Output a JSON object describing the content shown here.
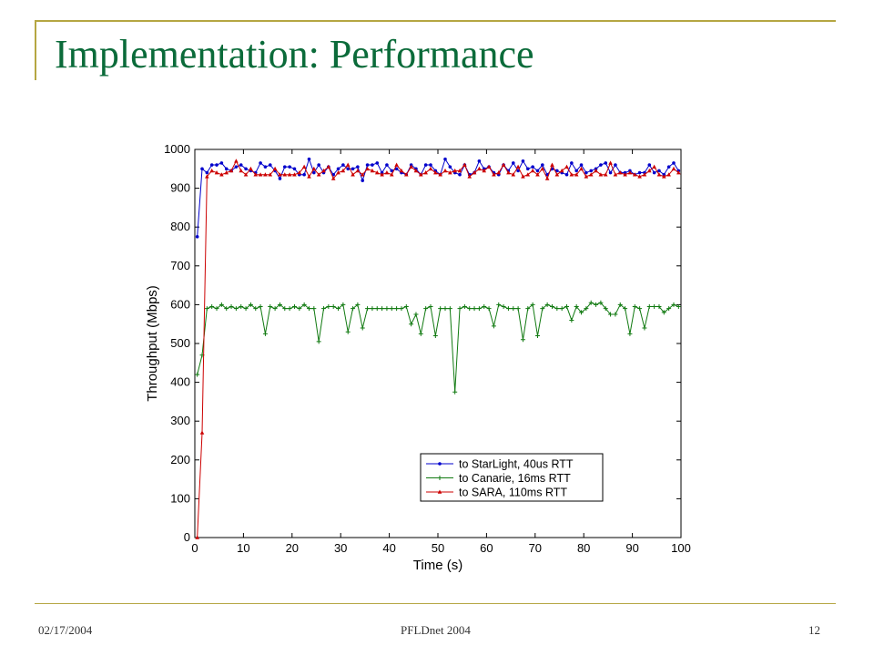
{
  "slide": {
    "title": "Implementation: Performance",
    "footer_date": "02/17/2004",
    "footer_center": "PFLDnet 2004",
    "footer_page": "12"
  },
  "colors": {
    "title": "#0b6b3a",
    "accent_line": "#b5a642",
    "starlight": "#0000cc",
    "canarie": "#117a11",
    "sara": "#cc0000"
  },
  "chart_data": {
    "type": "line",
    "xlabel": "Time (s)",
    "ylabel": "Throughput (Mbps)",
    "xlim": [
      0,
      100
    ],
    "ylim": [
      0,
      1000
    ],
    "xticks": [
      0,
      10,
      20,
      30,
      40,
      50,
      60,
      70,
      80,
      90,
      100
    ],
    "yticks": [
      0,
      100,
      200,
      300,
      400,
      500,
      600,
      700,
      800,
      900,
      1000
    ],
    "grid": false,
    "legend_position": "bottom-right",
    "series": [
      {
        "name": "to StarLight, 40us RTT",
        "color": "#0000cc",
        "marker": "dot",
        "x": [
          0.5,
          1.5,
          2.5,
          3.5,
          4.5,
          5.5,
          6.5,
          7.5,
          8.5,
          9.5,
          10.5,
          11.5,
          12.5,
          13.5,
          14.5,
          15.5,
          16.5,
          17.5,
          18.5,
          19.5,
          20.5,
          21.5,
          22.5,
          23.5,
          24.5,
          25.5,
          26.5,
          27.5,
          28.5,
          29.5,
          30.5,
          31.5,
          32.5,
          33.5,
          34.5,
          35.5,
          36.5,
          37.5,
          38.5,
          39.5,
          40.5,
          41.5,
          42.5,
          43.5,
          44.5,
          45.5,
          46.5,
          47.5,
          48.5,
          49.5,
          50.5,
          51.5,
          52.5,
          53.5,
          54.5,
          55.5,
          56.5,
          57.5,
          58.5,
          59.5,
          60.5,
          61.5,
          62.5,
          63.5,
          64.5,
          65.5,
          66.5,
          67.5,
          68.5,
          69.5,
          70.5,
          71.5,
          72.5,
          73.5,
          74.5,
          75.5,
          76.5,
          77.5,
          78.5,
          79.5,
          80.5,
          81.5,
          82.5,
          83.5,
          84.5,
          85.5,
          86.5,
          87.5,
          88.5,
          89.5,
          90.5,
          91.5,
          92.5,
          93.5,
          94.5,
          95.5,
          96.5,
          97.5,
          98.5,
          99.5
        ],
        "y": [
          775,
          950,
          940,
          960,
          960,
          965,
          950,
          945,
          955,
          960,
          950,
          945,
          940,
          965,
          955,
          960,
          945,
          925,
          955,
          955,
          950,
          935,
          935,
          975,
          940,
          960,
          940,
          955,
          935,
          950,
          960,
          950,
          950,
          955,
          920,
          960,
          960,
          965,
          940,
          960,
          945,
          950,
          940,
          935,
          960,
          950,
          935,
          960,
          960,
          945,
          935,
          975,
          955,
          940,
          935,
          960,
          935,
          940,
          970,
          950,
          955,
          940,
          935,
          960,
          945,
          965,
          945,
          970,
          950,
          955,
          945,
          960,
          935,
          950,
          945,
          940,
          935,
          965,
          945,
          960,
          940,
          945,
          950,
          960,
          965,
          940,
          960,
          940,
          940,
          945,
          935,
          940,
          940,
          960,
          940,
          945,
          935,
          955,
          965,
          945
        ]
      },
      {
        "name": "to Canarie, 16ms RTT",
        "color": "#117a11",
        "marker": "plus",
        "x": [
          0.5,
          1.5,
          2.5,
          3.5,
          4.5,
          5.5,
          6.5,
          7.5,
          8.5,
          9.5,
          10.5,
          11.5,
          12.5,
          13.5,
          14.5,
          15.5,
          16.5,
          17.5,
          18.5,
          19.5,
          20.5,
          21.5,
          22.5,
          23.5,
          24.5,
          25.5,
          26.5,
          27.5,
          28.5,
          29.5,
          30.5,
          31.5,
          32.5,
          33.5,
          34.5,
          35.5,
          36.5,
          37.5,
          38.5,
          39.5,
          40.5,
          41.5,
          42.5,
          43.5,
          44.5,
          45.5,
          46.5,
          47.5,
          48.5,
          49.5,
          50.5,
          51.5,
          52.5,
          53.5,
          54.5,
          55.5,
          56.5,
          57.5,
          58.5,
          59.5,
          60.5,
          61.5,
          62.5,
          63.5,
          64.5,
          65.5,
          66.5,
          67.5,
          68.5,
          69.5,
          70.5,
          71.5,
          72.5,
          73.5,
          74.5,
          75.5,
          76.5,
          77.5,
          78.5,
          79.5,
          80.5,
          81.5,
          82.5,
          83.5,
          84.5,
          85.5,
          86.5,
          87.5,
          88.5,
          89.5,
          90.5,
          91.5,
          92.5,
          93.5,
          94.5,
          95.5,
          96.5,
          97.5,
          98.5,
          99.5
        ],
        "y": [
          420,
          470,
          590,
          595,
          590,
          600,
          590,
          595,
          590,
          595,
          590,
          600,
          590,
          595,
          525,
          595,
          590,
          600,
          590,
          590,
          595,
          590,
          600,
          590,
          590,
          505,
          590,
          595,
          595,
          590,
          600,
          530,
          590,
          600,
          540,
          590,
          590,
          590,
          590,
          590,
          590,
          590,
          590,
          595,
          550,
          575,
          525,
          590,
          595,
          520,
          590,
          590,
          590,
          375,
          590,
          595,
          590,
          590,
          590,
          595,
          590,
          545,
          600,
          595,
          590,
          590,
          590,
          510,
          590,
          600,
          520,
          590,
          600,
          595,
          590,
          590,
          595,
          560,
          595,
          580,
          590,
          605,
          600,
          605,
          590,
          575,
          575,
          600,
          590,
          525,
          595,
          590,
          540,
          595,
          595,
          595,
          580,
          590,
          600,
          595
        ]
      },
      {
        "name": "to SARA, 110ms RTT",
        "color": "#cc0000",
        "marker": "triangle",
        "x": [
          0.5,
          1.5,
          2.5,
          3.5,
          4.5,
          5.5,
          6.5,
          7.5,
          8.5,
          9.5,
          10.5,
          11.5,
          12.5,
          13.5,
          14.5,
          15.5,
          16.5,
          17.5,
          18.5,
          19.5,
          20.5,
          21.5,
          22.5,
          23.5,
          24.5,
          25.5,
          26.5,
          27.5,
          28.5,
          29.5,
          30.5,
          31.5,
          32.5,
          33.5,
          34.5,
          35.5,
          36.5,
          37.5,
          38.5,
          39.5,
          40.5,
          41.5,
          42.5,
          43.5,
          44.5,
          45.5,
          46.5,
          47.5,
          48.5,
          49.5,
          50.5,
          51.5,
          52.5,
          53.5,
          54.5,
          55.5,
          56.5,
          57.5,
          58.5,
          59.5,
          60.5,
          61.5,
          62.5,
          63.5,
          64.5,
          65.5,
          66.5,
          67.5,
          68.5,
          69.5,
          70.5,
          71.5,
          72.5,
          73.5,
          74.5,
          75.5,
          76.5,
          77.5,
          78.5,
          79.5,
          80.5,
          81.5,
          82.5,
          83.5,
          84.5,
          85.5,
          86.5,
          87.5,
          88.5,
          89.5,
          90.5,
          91.5,
          92.5,
          93.5,
          94.5,
          95.5,
          96.5,
          97.5,
          98.5,
          99.5
        ],
        "y": [
          0,
          270,
          930,
          945,
          940,
          935,
          940,
          945,
          970,
          945,
          935,
          950,
          935,
          935,
          935,
          935,
          950,
          935,
          935,
          935,
          935,
          940,
          955,
          930,
          950,
          935,
          945,
          955,
          925,
          940,
          945,
          960,
          935,
          945,
          935,
          950,
          945,
          940,
          935,
          940,
          935,
          960,
          945,
          935,
          955,
          945,
          935,
          940,
          950,
          940,
          935,
          945,
          940,
          945,
          945,
          960,
          930,
          940,
          950,
          945,
          955,
          935,
          940,
          960,
          940,
          935,
          955,
          930,
          935,
          945,
          935,
          950,
          925,
          960,
          935,
          945,
          955,
          935,
          935,
          950,
          930,
          935,
          945,
          935,
          935,
          965,
          935,
          940,
          935,
          940,
          935,
          930,
          935,
          945,
          955,
          935,
          930,
          935,
          950,
          940
        ]
      }
    ]
  }
}
